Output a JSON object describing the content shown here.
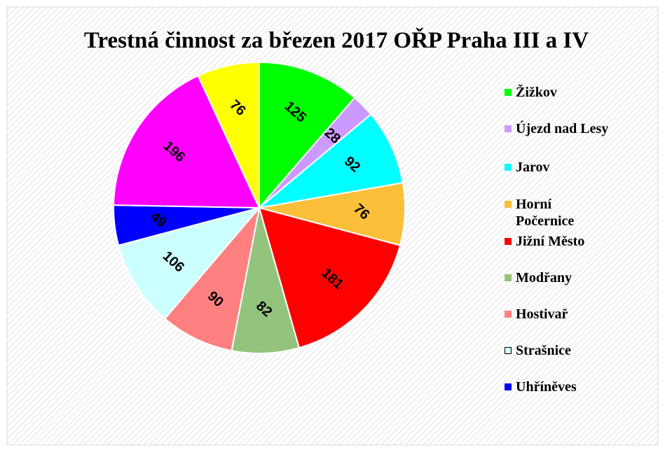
{
  "chart_data": {
    "type": "pie",
    "title": "Trestná činnost za březen 2017 OŘP Praha III a IV",
    "categories": [
      "Žižkov",
      "Újezd nad Lesy",
      "Jarov",
      "Horní Počernice",
      "Jižní Město",
      "Modřany",
      "Hostivař",
      "Strašnice",
      "Uhříněves",
      null,
      null
    ],
    "values": [
      125,
      28,
      92,
      76,
      181,
      82,
      90,
      106,
      49,
      196,
      76
    ],
    "colors": [
      "#00ff00",
      "#cc99ff",
      "#00ffff",
      "#fbbf3a",
      "#ff0000",
      "#93c47d",
      "#ff8080",
      "#ccffff",
      "#0000ff",
      "#ff00ff",
      "#ffff00"
    ],
    "legend": "right"
  }
}
